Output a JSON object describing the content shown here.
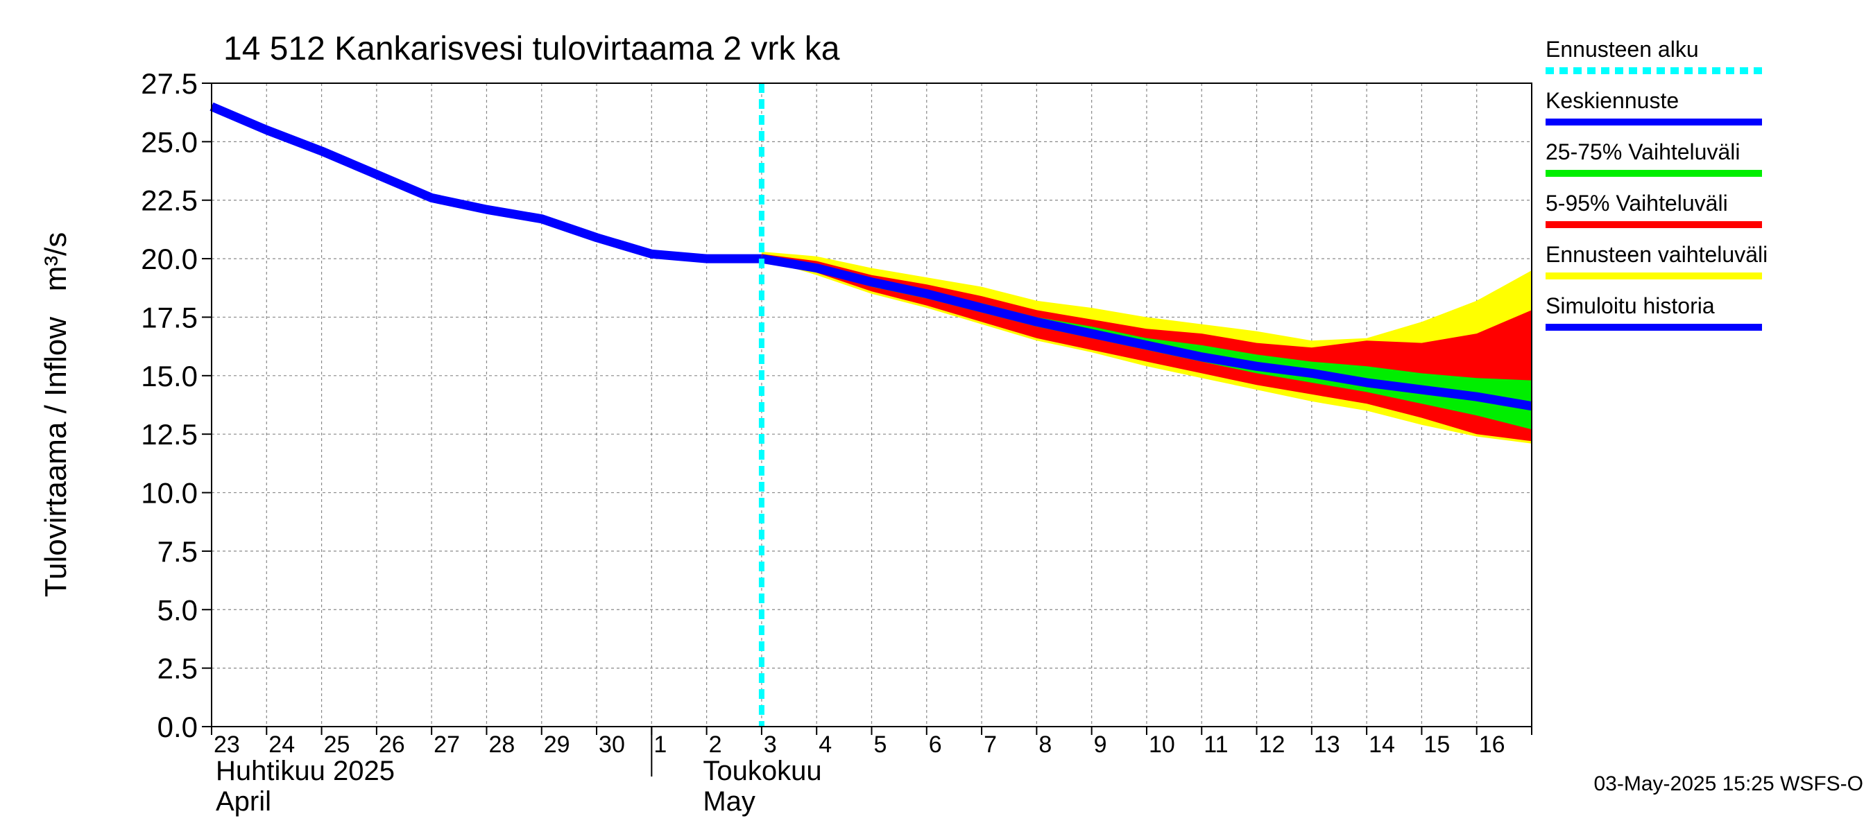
{
  "chart_data": {
    "type": "area",
    "title": "14 512 Kankarisvesi tulovirtaama 2 vrk ka",
    "ylabel": "Tulovirtaama / Inflow   m³/s",
    "ylim": [
      0,
      27.5
    ],
    "yticks": [
      0,
      2.5,
      5,
      7.5,
      10,
      12.5,
      15,
      17.5,
      20,
      22.5,
      25,
      27.5
    ],
    "ytick_labels": [
      "0.0",
      "2.5",
      "5.0",
      "7.5",
      "10.0",
      "12.5",
      "15.0",
      "17.5",
      "20.0",
      "22.5",
      "25.0",
      "27.5"
    ],
    "xlim_days": [
      0,
      24
    ],
    "day_labels": [
      "23",
      "24",
      "25",
      "26",
      "27",
      "28",
      "29",
      "30",
      "1",
      "2",
      "3",
      "4",
      "5",
      "6",
      "7",
      "8",
      "9",
      "10",
      "11",
      "12",
      "13",
      "14",
      "15",
      "16"
    ],
    "month_labels": [
      {
        "name": "Huhtikuu  2025",
        "name_en": "April",
        "start_day": 0
      },
      {
        "name": "Toukokuu",
        "name_en": "May",
        "start_day": 8
      }
    ],
    "forecast_start_day": 10,
    "series": [
      {
        "name": "Ennusteen vaihteluväli",
        "color": "#ffff00",
        "kind": "band",
        "x": [
          10,
          11,
          12,
          13,
          14,
          15,
          16,
          17,
          18,
          19,
          20,
          21,
          22,
          23,
          24
        ],
        "upper": [
          20.3,
          20.1,
          19.6,
          19.2,
          18.8,
          18.2,
          17.9,
          17.5,
          17.2,
          16.9,
          16.5,
          16.6,
          17.3,
          18.2,
          19.5
        ],
        "lower": [
          20.0,
          19.3,
          18.5,
          17.9,
          17.2,
          16.5,
          16.0,
          15.4,
          14.9,
          14.4,
          13.9,
          13.5,
          12.9,
          12.4,
          12.1
        ]
      },
      {
        "name": "5-95% Vaihteluväli",
        "color": "#ff0000",
        "kind": "band",
        "x": [
          10,
          11,
          12,
          13,
          14,
          15,
          16,
          17,
          18,
          19,
          20,
          21,
          22,
          23,
          24
        ],
        "upper": [
          20.2,
          19.9,
          19.3,
          18.9,
          18.4,
          17.8,
          17.4,
          17.0,
          16.8,
          16.4,
          16.2,
          16.5,
          16.4,
          16.8,
          17.8
        ],
        "lower": [
          20.0,
          19.4,
          18.6,
          18.0,
          17.3,
          16.6,
          16.1,
          15.6,
          15.1,
          14.6,
          14.2,
          13.8,
          13.2,
          12.5,
          12.2
        ]
      },
      {
        "name": "25-75% Vaihteluväli",
        "color": "#00ee00",
        "kind": "band",
        "x": [
          10,
          11,
          12,
          13,
          14,
          15,
          16,
          17,
          18,
          19,
          20,
          21,
          22,
          23,
          24
        ],
        "upper": [
          20.1,
          19.7,
          19.1,
          18.6,
          18.1,
          17.5,
          17.1,
          16.6,
          16.3,
          15.9,
          15.6,
          15.4,
          15.1,
          14.9,
          14.8
        ],
        "lower": [
          20.0,
          19.5,
          18.8,
          18.3,
          17.7,
          17.1,
          16.6,
          16.1,
          15.6,
          15.1,
          14.7,
          14.3,
          13.8,
          13.3,
          12.7
        ]
      },
      {
        "name": "Keskiennuste",
        "color": "#0000ff",
        "kind": "line",
        "x": [
          10,
          11,
          12,
          13,
          14,
          15,
          16,
          17,
          18,
          19,
          20,
          21,
          22,
          23,
          24
        ],
        "values": [
          20.0,
          19.6,
          19.0,
          18.5,
          17.9,
          17.3,
          16.8,
          16.3,
          15.8,
          15.4,
          15.1,
          14.7,
          14.4,
          14.1,
          13.7
        ]
      },
      {
        "name": "Simuloitu historia",
        "color": "#0000ff",
        "kind": "line",
        "x": [
          0,
          1,
          2,
          3,
          4,
          5,
          6,
          7,
          8,
          9,
          10
        ],
        "values": [
          26.5,
          25.5,
          24.6,
          23.6,
          22.6,
          22.1,
          21.7,
          20.9,
          20.2,
          20.0,
          20.0
        ]
      }
    ],
    "legend": [
      {
        "label": "Ennusteen alku",
        "color": "#00ffff",
        "style": "dashed"
      },
      {
        "label": "Keskiennuste",
        "color": "#0000ff",
        "style": "solid"
      },
      {
        "label": "25-75% Vaihteluväli",
        "color": "#00ee00",
        "style": "solid"
      },
      {
        "label": "5-95% Vaihteluväli",
        "color": "#ff0000",
        "style": "solid"
      },
      {
        "label": "Ennusteen vaihteluväli",
        "color": "#ffff00",
        "style": "solid"
      },
      {
        "label": "Simuloitu historia",
        "color": "#0000ff",
        "style": "solid"
      }
    ],
    "legend_position": "right",
    "grid": true,
    "footer": "03-May-2025 15:25 WSFS-O"
  }
}
